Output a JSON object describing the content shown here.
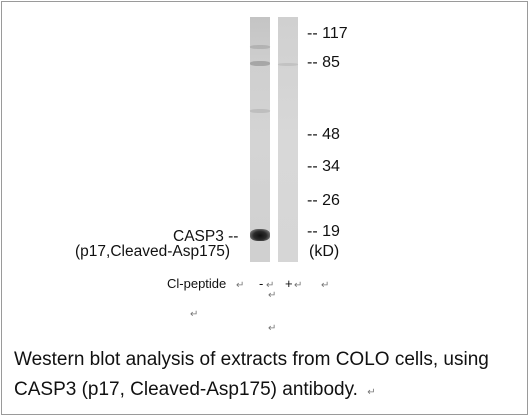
{
  "blot": {
    "mw_markers": [
      "-- 117",
      "-- 85",
      "-- 48",
      "-- 34",
      "-- 26",
      "-- 19"
    ],
    "kd_unit": "(kD)",
    "target_label_line1": "CASP3 --",
    "target_label_line2": "(p17,Cleaved-Asp175)",
    "peptide_label": "Cl-peptide",
    "lane_minus": "-",
    "lane_plus": "+"
  },
  "caption": {
    "line1": "Western blot analysis of extracts from COLO cells, using",
    "line2": "CASP3 (p17, Cleaved-Asp175) antibody."
  },
  "paragraph_mark": "↵"
}
